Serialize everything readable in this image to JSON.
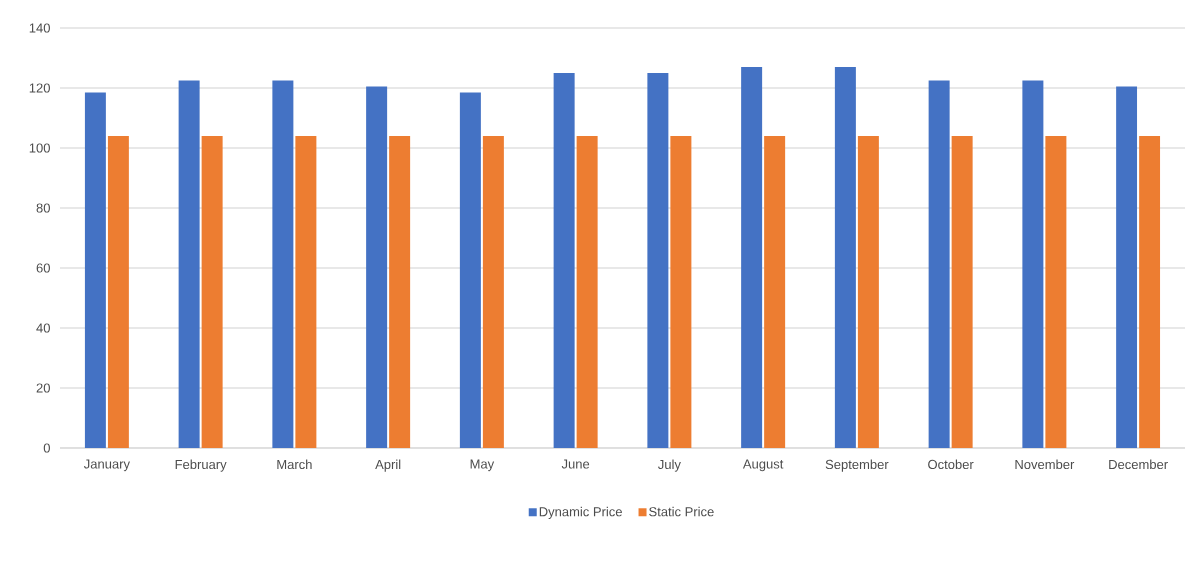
{
  "chart_data": {
    "type": "bar",
    "categories": [
      "January",
      "February",
      "March",
      "April",
      "May",
      "June",
      "July",
      "August",
      "September",
      "October",
      "November",
      "December"
    ],
    "series": [
      {
        "name": "Dynamic Price",
        "color": "#4472c4",
        "values": [
          118.5,
          122.5,
          122.5,
          120.5,
          118.5,
          125,
          125,
          127,
          127,
          122.5,
          122.5,
          120.5
        ]
      },
      {
        "name": "Static Price",
        "color": "#ed7d31",
        "values": [
          104,
          104,
          104,
          104,
          104,
          104,
          104,
          104,
          104,
          104,
          104,
          104
        ]
      }
    ],
    "ylim": [
      0,
      140
    ],
    "yticks": [
      0,
      20,
      40,
      60,
      80,
      100,
      120,
      140
    ],
    "grid": "y",
    "legend": "bottom"
  }
}
